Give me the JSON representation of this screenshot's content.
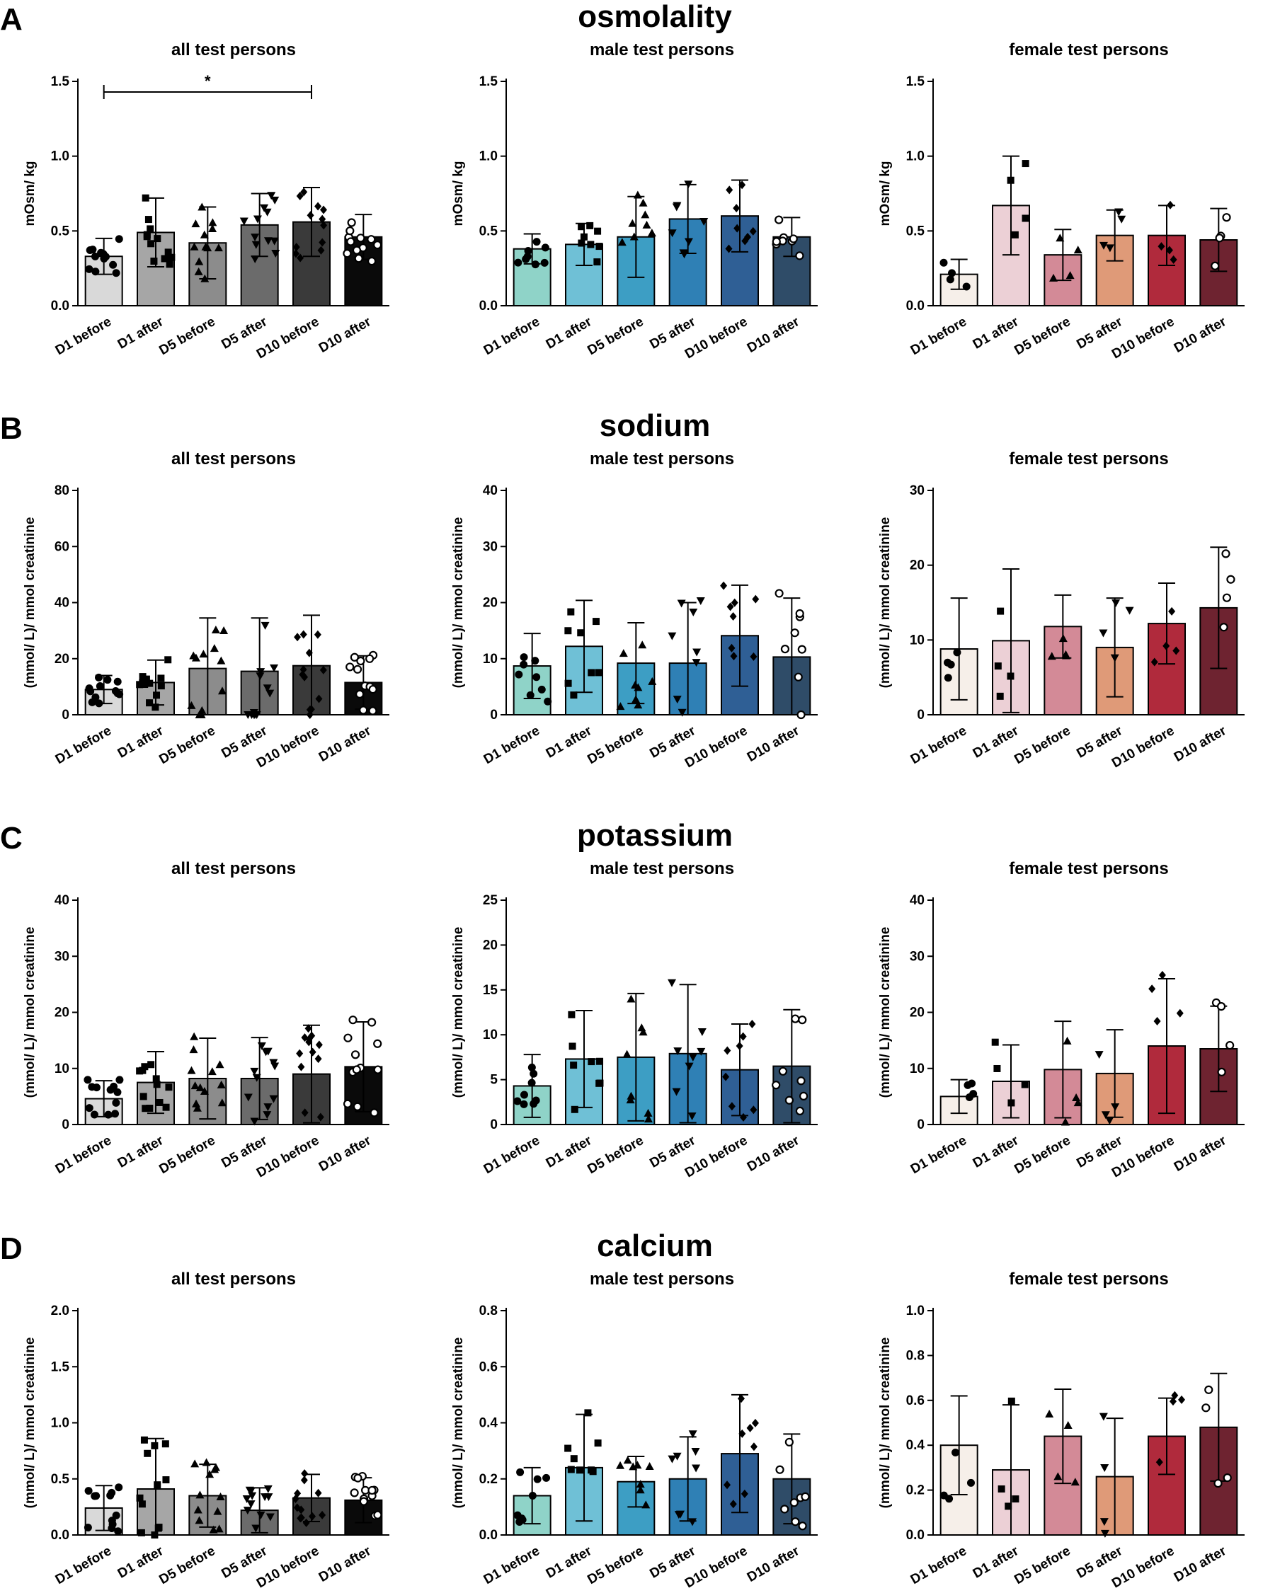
{
  "figure": {
    "panel_label_text": "all test persons / male test persons / female test persons"
  },
  "colors": {
    "all": [
      "#d9d9d9",
      "#a6a6a6",
      "#8c8c8c",
      "#6b6b6b",
      "#3a3a3a",
      "#0a0a0a"
    ],
    "male": [
      "#8fd3c8",
      "#6fc0d6",
      "#3d9ec4",
      "#2f80b5",
      "#2f5f95",
      "#2f4c68"
    ],
    "female": [
      "#f6efe9",
      "#ecd0d6",
      "#d38a97",
      "#df9a78",
      "#b02a3c",
      "#6e2330"
    ]
  },
  "chart_data": [
    {
      "type": "bar",
      "panel": "A",
      "title": "osmolality",
      "ylabel": "mOsm/ kg",
      "categories": [
        "D1 before",
        "D1 after",
        "D5 before",
        "D5 after",
        "D10 before",
        "D10 after"
      ],
      "subplots": [
        {
          "subtitle": "all test persons",
          "group": "all",
          "ylim": [
            0,
            1.5
          ],
          "yticks": [
            "0.0",
            "0.5",
            "1.0",
            "1.5"
          ],
          "values": [
            0.33,
            0.49,
            0.42,
            0.54,
            0.56,
            0.46
          ],
          "sd": [
            0.12,
            0.23,
            0.24,
            0.21,
            0.23,
            0.15
          ],
          "significance": {
            "from": 0,
            "to": 4,
            "label": "*"
          }
        },
        {
          "subtitle": "male test persons",
          "group": "male",
          "ylim": [
            0,
            1.5
          ],
          "yticks": [
            "0.0",
            "0.5",
            "1.0",
            "1.5"
          ],
          "values": [
            0.38,
            0.41,
            0.46,
            0.58,
            0.6,
            0.46
          ],
          "sd": [
            0.1,
            0.14,
            0.27,
            0.23,
            0.24,
            0.13
          ]
        },
        {
          "subtitle": "female test persons",
          "group": "female",
          "ylim": [
            0,
            1.5
          ],
          "yticks": [
            "0.0",
            "0.5",
            "1.0",
            "1.5"
          ],
          "values": [
            0.21,
            0.67,
            0.34,
            0.47,
            0.47,
            0.44
          ],
          "sd": [
            0.1,
            0.33,
            0.17,
            0.17,
            0.2,
            0.21
          ]
        }
      ]
    },
    {
      "type": "bar",
      "panel": "B",
      "title": "sodium",
      "ylabel": "(mmol/ L)/ mmol creatinine",
      "categories": [
        "D1 before",
        "D1 after",
        "D5 before",
        "D5 after",
        "D10 before",
        "D10 after"
      ],
      "subplots": [
        {
          "subtitle": "all test persons",
          "group": "all",
          "ylim": [
            0,
            80
          ],
          "yticks": [
            "0",
            "20",
            "40",
            "60",
            "80"
          ],
          "values": [
            9,
            11.5,
            16.5,
            15.5,
            17.5,
            11.5
          ],
          "sd": [
            5,
            8,
            18,
            19,
            18,
            9.5
          ]
        },
        {
          "subtitle": "male test persons",
          "group": "male",
          "ylim": [
            0,
            40
          ],
          "yticks": [
            "0",
            "10",
            "20",
            "30",
            "40"
          ],
          "values": [
            8.7,
            12.2,
            9.2,
            9.2,
            14.1,
            10.3
          ],
          "sd": [
            5.8,
            8.2,
            7.2,
            10.8,
            9,
            10.5
          ]
        },
        {
          "subtitle": "female test persons",
          "group": "female",
          "ylim": [
            0,
            30
          ],
          "yticks": [
            "0",
            "10",
            "20",
            "30"
          ],
          "values": [
            8.8,
            9.9,
            11.8,
            9,
            12.2,
            14.3
          ],
          "sd": [
            6.8,
            9.6,
            4.2,
            6.6,
            5.4,
            8.1
          ]
        }
      ]
    },
    {
      "type": "bar",
      "panel": "C",
      "title": "potassium",
      "ylabel": "(mmol/ L)/ mmol creatinine",
      "categories": [
        "D1 before",
        "D1 after",
        "D5 before",
        "D5 after",
        "D10 before",
        "D10 after"
      ],
      "subplots": [
        {
          "subtitle": "all test persons",
          "group": "all",
          "ylim": [
            0,
            40
          ],
          "yticks": [
            "0",
            "10",
            "20",
            "30",
            "40"
          ],
          "values": [
            4.6,
            7.5,
            8.2,
            8.2,
            9,
            10.3
          ],
          "sd": [
            3.2,
            5.5,
            7.2,
            7.3,
            8.7,
            8
          ]
        },
        {
          "subtitle": "male test persons",
          "group": "male",
          "ylim": [
            0,
            25
          ],
          "yticks": [
            "0",
            "5",
            "10",
            "15",
            "20",
            "25"
          ],
          "values": [
            4.3,
            7.3,
            7.5,
            7.9,
            6.1,
            6.5
          ],
          "sd": [
            3.5,
            5.4,
            7.1,
            7.7,
            5.1,
            6.3
          ]
        },
        {
          "subtitle": "female test persons",
          "group": "female",
          "ylim": [
            0,
            40
          ],
          "yticks": [
            "0",
            "10",
            "20",
            "30",
            "40"
          ],
          "values": [
            5,
            7.7,
            9.8,
            9.1,
            14,
            13.5
          ],
          "sd": [
            3,
            6.5,
            8.6,
            7.8,
            12,
            7.6
          ]
        }
      ]
    },
    {
      "type": "bar",
      "panel": "D",
      "title": "calcium",
      "ylabel": "(mmol/ L)/ mmol creatinine",
      "categories": [
        "D1 before",
        "D1 after",
        "D5 before",
        "D5 after",
        "D10 before",
        "D10 after"
      ],
      "subplots": [
        {
          "subtitle": "all test persons",
          "group": "all",
          "ylim": [
            0,
            2.0
          ],
          "yticks": [
            "0.0",
            "0.5",
            "1.0",
            "1.5",
            "2.0"
          ],
          "values": [
            0.24,
            0.41,
            0.35,
            0.22,
            0.33,
            0.31
          ],
          "sd": [
            0.2,
            0.45,
            0.28,
            0.2,
            0.21,
            0.2
          ]
        },
        {
          "subtitle": "male test persons",
          "group": "male",
          "ylim": [
            0,
            0.8
          ],
          "yticks": [
            "0.0",
            "0.2",
            "0.4",
            "0.6",
            "0.8"
          ],
          "values": [
            0.14,
            0.24,
            0.19,
            0.2,
            0.29,
            0.2
          ],
          "sd": [
            0.1,
            0.19,
            0.09,
            0.15,
            0.21,
            0.16
          ]
        },
        {
          "subtitle": "female test persons",
          "group": "female",
          "ylim": [
            0,
            1.0
          ],
          "yticks": [
            "0.0",
            "0.2",
            "0.4",
            "0.6",
            "0.8",
            "1.0"
          ],
          "values": [
            0.4,
            0.29,
            0.44,
            0.26,
            0.44,
            0.48
          ],
          "sd": [
            0.22,
            0.29,
            0.21,
            0.26,
            0.17,
            0.24
          ]
        }
      ]
    }
  ]
}
